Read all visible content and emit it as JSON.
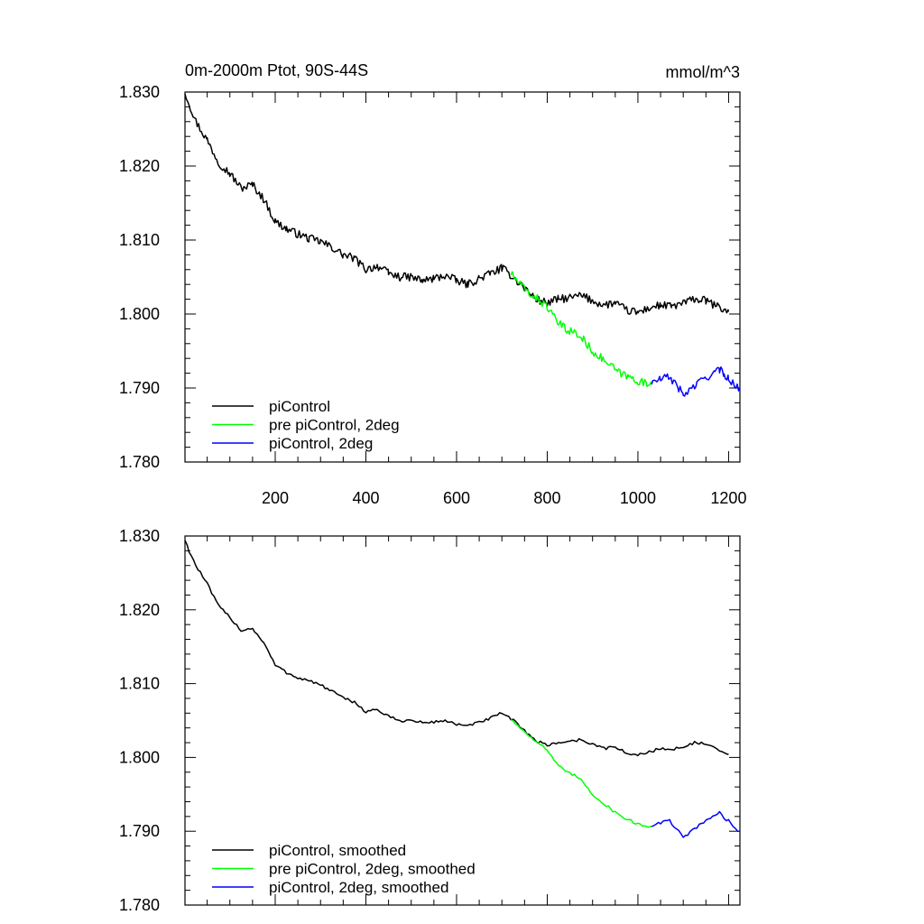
{
  "chart_data": [
    {
      "type": "line",
      "title": "0m-2000m Ptot, 90S-44S",
      "units": "mmol/m^3",
      "xlabel": "",
      "ylabel": "",
      "xlim": [
        1,
        1225
      ],
      "ylim": [
        1.78,
        1.83
      ],
      "x_ticks": [
        200,
        400,
        600,
        800,
        1000,
        1200
      ],
      "x_tick_labels": [
        "200",
        "400",
        "600",
        "800",
        "1000",
        "1200"
      ],
      "y_ticks": [
        1.78,
        1.79,
        1.8,
        1.81,
        1.82,
        1.83
      ],
      "y_tick_labels": [
        "1.780",
        "1.790",
        "1.800",
        "1.810",
        "1.820",
        "1.830"
      ],
      "legend_position": "bottom-left",
      "series": [
        {
          "name": "piControl",
          "color": "#000000",
          "x": [
            1,
            10,
            25,
            50,
            75,
            100,
            125,
            150,
            175,
            200,
            225,
            250,
            275,
            300,
            325,
            350,
            375,
            400,
            425,
            450,
            475,
            500,
            525,
            550,
            575,
            600,
            625,
            650,
            675,
            700,
            725,
            750,
            775,
            800,
            825,
            850,
            875,
            900,
            925,
            950,
            975,
            1000,
            1025,
            1050,
            1075,
            1100,
            1125,
            1150,
            1175,
            1200
          ],
          "y": [
            1.83,
            1.8285,
            1.826,
            1.8235,
            1.8205,
            1.819,
            1.817,
            1.8175,
            1.8155,
            1.8125,
            1.8115,
            1.8108,
            1.8102,
            1.8098,
            1.809,
            1.808,
            1.8075,
            1.806,
            1.8065,
            1.8055,
            1.805,
            1.805,
            1.8045,
            1.8048,
            1.8052,
            1.8045,
            1.804,
            1.8048,
            1.8055,
            1.8062,
            1.805,
            1.8035,
            1.802,
            1.8015,
            1.802,
            1.8022,
            1.8025,
            1.8018,
            1.8012,
            1.8015,
            1.8005,
            1.8002,
            1.8008,
            1.8012,
            1.801,
            1.8015,
            1.802,
            1.8018,
            1.801,
            1.8003
          ]
        },
        {
          "name": "pre piControl, 2deg",
          "color": "#00ff00",
          "x": [
            720,
            740,
            760,
            780,
            800,
            820,
            840,
            860,
            880,
            900,
            920,
            940,
            960,
            980,
            1000,
            1020,
            1030
          ],
          "y": [
            1.8055,
            1.804,
            1.8028,
            1.802,
            1.801,
            1.799,
            1.798,
            1.7975,
            1.7965,
            1.795,
            1.794,
            1.793,
            1.792,
            1.7915,
            1.791,
            1.7905,
            1.7907
          ]
        },
        {
          "name": "piControl, 2deg",
          "color": "#0000ff",
          "x": [
            1030,
            1050,
            1070,
            1090,
            1100,
            1110,
            1130,
            1150,
            1170,
            1180,
            1190,
            1200,
            1210,
            1225
          ],
          "y": [
            1.7907,
            1.7912,
            1.7915,
            1.79,
            1.789,
            1.7895,
            1.7905,
            1.7915,
            1.792,
            1.7925,
            1.7918,
            1.7915,
            1.7905,
            1.79
          ]
        }
      ]
    },
    {
      "type": "line",
      "title": "",
      "xlabel": "",
      "ylabel": "",
      "xlim": [
        1,
        1225
      ],
      "ylim": [
        1.78,
        1.83
      ],
      "x_ticks": [
        200,
        400,
        600,
        800,
        1000,
        1200
      ],
      "x_tick_labels": [],
      "y_ticks": [
        1.78,
        1.79,
        1.8,
        1.81,
        1.82,
        1.83
      ],
      "y_tick_labels": [
        "1.780",
        "1.790",
        "1.800",
        "1.810",
        "1.820",
        "1.830"
      ],
      "legend_position": "bottom-left",
      "series": [
        {
          "name": "piControl, smoothed",
          "color": "#000000",
          "x": [
            1,
            10,
            25,
            50,
            75,
            100,
            125,
            150,
            175,
            200,
            225,
            250,
            275,
            300,
            325,
            350,
            375,
            400,
            425,
            450,
            475,
            500,
            525,
            550,
            575,
            600,
            625,
            650,
            675,
            700,
            725,
            750,
            775,
            800,
            825,
            850,
            875,
            900,
            925,
            950,
            975,
            1000,
            1025,
            1050,
            1075,
            1100,
            1125,
            1150,
            1175,
            1200
          ],
          "y": [
            1.8295,
            1.828,
            1.826,
            1.8235,
            1.8205,
            1.819,
            1.8172,
            1.8175,
            1.8155,
            1.8125,
            1.8115,
            1.8108,
            1.8104,
            1.8098,
            1.809,
            1.808,
            1.8075,
            1.8062,
            1.8065,
            1.8055,
            1.805,
            1.805,
            1.8047,
            1.8048,
            1.805,
            1.8045,
            1.8042,
            1.8048,
            1.8053,
            1.806,
            1.805,
            1.8037,
            1.8022,
            1.8017,
            1.802,
            1.8022,
            1.8024,
            1.8018,
            1.8012,
            1.8015,
            1.8005,
            1.8003,
            1.8008,
            1.8012,
            1.801,
            1.8015,
            1.802,
            1.8018,
            1.801,
            1.8004
          ]
        },
        {
          "name": "pre piControl, 2deg, smoothed",
          "color": "#00ff00",
          "x": [
            720,
            740,
            760,
            780,
            800,
            820,
            840,
            860,
            880,
            900,
            920,
            940,
            960,
            980,
            1000,
            1020,
            1030
          ],
          "y": [
            1.8052,
            1.804,
            1.803,
            1.802,
            1.801,
            1.7992,
            1.798,
            1.7976,
            1.7966,
            1.795,
            1.794,
            1.793,
            1.7922,
            1.7915,
            1.791,
            1.7906,
            1.7907
          ]
        },
        {
          "name": "piControl, 2deg, smoothed",
          "color": "#0000ff",
          "x": [
            1030,
            1050,
            1070,
            1090,
            1100,
            1110,
            1130,
            1150,
            1170,
            1180,
            1190,
            1200,
            1210,
            1225
          ],
          "y": [
            1.7907,
            1.7912,
            1.7914,
            1.79,
            1.789,
            1.7896,
            1.7905,
            1.7915,
            1.792,
            1.7925,
            1.7918,
            1.7914,
            1.7905,
            1.79
          ]
        }
      ]
    }
  ]
}
